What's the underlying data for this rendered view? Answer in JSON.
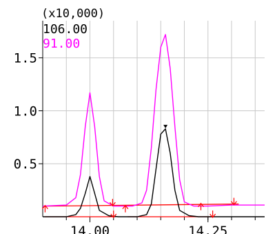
{
  "chart_data": {
    "type": "line",
    "title": "",
    "scale_label": "(x10,000)",
    "xlabel": "",
    "ylabel": "",
    "xlim": [
      13.9,
      14.37
    ],
    "ylim": [
      0.0,
      1.85
    ],
    "x_ticks": [
      13.95,
      14.0,
      14.05,
      14.1,
      14.15,
      14.2,
      14.25,
      14.3,
      14.35
    ],
    "x_tick_labels": [
      {
        "x": 14.0,
        "label": "14.00"
      },
      {
        "x": 14.25,
        "label": "14.25"
      }
    ],
    "y_ticks": [
      {
        "y": 0.5,
        "label": "0.5"
      },
      {
        "y": 1.0,
        "label": "1.0"
      },
      {
        "y": 1.5,
        "label": "1.5"
      }
    ],
    "grid": true,
    "legend_position": "top-left",
    "series": [
      {
        "name": "106.00",
        "color": "#000000",
        "x": [
          13.9,
          13.95,
          13.97,
          13.98,
          13.99,
          14.0,
          14.01,
          14.02,
          14.04,
          14.06,
          14.08,
          14.1,
          14.12,
          14.13,
          14.14,
          14.15,
          14.16,
          14.17,
          14.18,
          14.19,
          14.21,
          14.23,
          14.26,
          14.3,
          14.37
        ],
        "y": [
          0.0,
          0.0,
          0.02,
          0.08,
          0.22,
          0.38,
          0.22,
          0.06,
          0.01,
          0.0,
          0.0,
          0.0,
          0.02,
          0.12,
          0.45,
          0.78,
          0.83,
          0.6,
          0.25,
          0.06,
          0.01,
          0.0,
          0.0,
          0.0,
          0.0
        ]
      },
      {
        "name": "91.00",
        "color": "#ff00ff",
        "x": [
          13.9,
          13.95,
          13.97,
          13.98,
          13.99,
          14.0,
          14.01,
          14.02,
          14.03,
          14.05,
          14.07,
          14.09,
          14.11,
          14.12,
          14.13,
          14.14,
          14.15,
          14.16,
          14.17,
          14.18,
          14.19,
          14.2,
          14.22,
          14.25,
          14.3,
          14.37
        ],
        "y": [
          0.1,
          0.11,
          0.18,
          0.4,
          0.85,
          1.17,
          0.85,
          0.38,
          0.15,
          0.1,
          0.1,
          0.1,
          0.13,
          0.25,
          0.65,
          1.2,
          1.6,
          1.72,
          1.4,
          0.85,
          0.35,
          0.14,
          0.1,
          0.1,
          0.11,
          0.11
        ]
      }
    ],
    "baselines": [
      {
        "color": "#ff0000",
        "x": [
          13.905,
          14.315
        ],
        "y": [
          0.1,
          0.12
        ]
      },
      {
        "color": "#ff0000",
        "x": [
          13.905,
          14.05
        ],
        "y": [
          0.0,
          0.0
        ]
      },
      {
        "color": "#ff0000",
        "x": [
          14.08,
          14.26
        ],
        "y": [
          0.0,
          0.0
        ]
      }
    ],
    "peak_markers": [
      {
        "x": 14.16,
        "y": 0.835,
        "color": "#000000",
        "marker": "triangle-down"
      }
    ],
    "integration_markers": [
      {
        "x": 13.905,
        "y": 0.1,
        "color": "#ff0000",
        "marker": "arrow-up"
      },
      {
        "x": 14.048,
        "y": 0.11,
        "color": "#ff0000",
        "marker": "arrow-down"
      },
      {
        "x": 14.075,
        "y": 0.1,
        "color": "#ff0000",
        "marker": "arrow-up"
      },
      {
        "x": 14.235,
        "y": 0.12,
        "color": "#ff0000",
        "marker": "arrow-up"
      },
      {
        "x": 14.305,
        "y": 0.12,
        "color": "#ff0000",
        "marker": "arrow-down"
      },
      {
        "x": 14.05,
        "y": 0.0,
        "color": "#ff0000",
        "marker": "arrow-down"
      },
      {
        "x": 14.26,
        "y": 0.0,
        "color": "#ff0000",
        "marker": "arrow-down"
      }
    ]
  }
}
